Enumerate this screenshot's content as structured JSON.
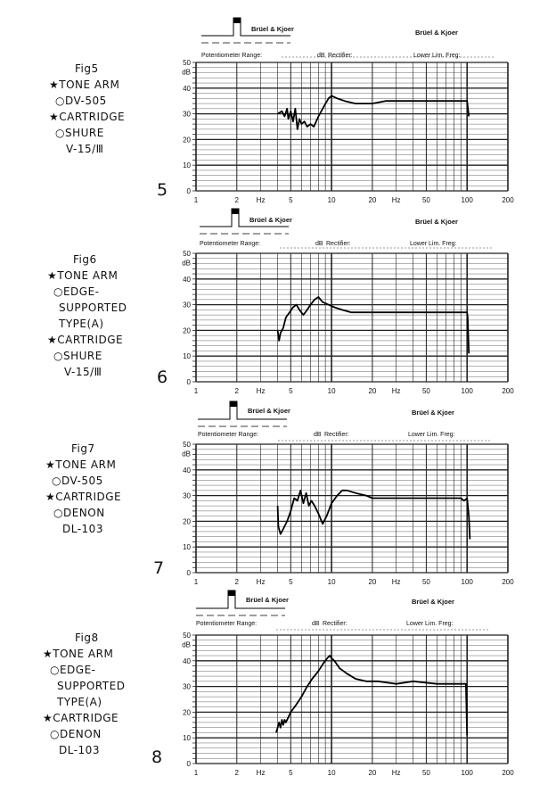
{
  "header": {
    "brand": "Brüel & Kjoer",
    "potentiometer_label": "Potentiometer Range:",
    "db_label": "dB",
    "rectifier_label": "Rectifier:",
    "lower_lim_label": "Lower Lim. Freg:"
  },
  "panels": [
    {
      "fig_label": "Fig5",
      "caption_lines": [
        "★TONE ARM",
        "○DV-505",
        "★CARTRIDGE",
        "○SHURE",
        "V-15/Ⅲ"
      ],
      "big_number": "5"
    },
    {
      "fig_label": "Fig6",
      "caption_lines": [
        "★TONE ARM",
        "○EDGE-",
        "SUPPORTED",
        "TYPE(A)",
        "★CARTRIDGE",
        "○SHURE",
        "V-15/Ⅲ"
      ],
      "big_number": "6"
    },
    {
      "fig_label": "Fig7",
      "caption_lines": [
        "★TONE ARM",
        "○DV-505",
        "★CARTRIDGE",
        "○DENON",
        "DL-103"
      ],
      "big_number": "7"
    },
    {
      "fig_label": "Fig8",
      "caption_lines": [
        "★TONE ARM",
        "○EDGE-",
        "SUPPORTED",
        "TYPE(A)",
        "★CARTRIDGE",
        "○DENON",
        "DL-103"
      ],
      "big_number": "8"
    }
  ],
  "chart_data": [
    {
      "type": "line",
      "xscale": "log",
      "xlim": [
        1,
        200
      ],
      "ylim": [
        0,
        50
      ],
      "ylabel": "dB",
      "xlabel": "Hz",
      "x_ticks": [
        "1",
        "2",
        "Hz",
        "5",
        "10",
        "20",
        "Hz",
        "50",
        "100",
        "200"
      ],
      "y_ticks": [
        "0",
        "10",
        "20",
        "30",
        "40",
        "50"
      ],
      "grid": true,
      "series": [
        {
          "x": [
            4.0,
            4.3,
            4.5,
            4.7,
            4.8,
            5.0,
            5.2,
            5.4,
            5.6,
            5.8,
            6.0,
            6.3,
            6.6,
            7.0,
            7.4,
            8.0,
            8.8,
            9.5,
            10.0,
            11.0,
            12.5,
            15.0,
            20.0,
            25.0,
            30.0,
            50.0,
            80.0,
            100.0,
            103.0
          ],
          "y": [
            30,
            31,
            29,
            32,
            28,
            31,
            27,
            32,
            24,
            28,
            26,
            27,
            25,
            26,
            25,
            29,
            33,
            36,
            37,
            36,
            35,
            34,
            34,
            35,
            35,
            35,
            35,
            35,
            29
          ]
        }
      ]
    },
    {
      "type": "line",
      "xscale": "log",
      "xlim": [
        1,
        200
      ],
      "ylim": [
        0,
        50
      ],
      "ylabel": "dB",
      "xlabel": "Hz",
      "x_ticks": [
        "1",
        "2",
        "Hz",
        "5",
        "10",
        "20",
        "Hz",
        "50",
        "100",
        "200"
      ],
      "y_ticks": [
        "0",
        "10",
        "20",
        "30",
        "40",
        "50"
      ],
      "grid": true,
      "series": [
        {
          "x": [
            4.0,
            4.1,
            4.2,
            4.4,
            4.6,
            4.9,
            5.2,
            5.5,
            5.8,
            6.2,
            6.6,
            7.0,
            7.5,
            8.0,
            8.6,
            9.5,
            10.5,
            12.0,
            14.0,
            17.0,
            20.0,
            30.0,
            50.0,
            80.0,
            100.0,
            101.0,
            103.0
          ],
          "y": [
            20,
            16,
            19,
            21,
            25,
            27,
            29,
            30,
            28,
            26,
            28,
            30,
            32,
            33,
            31,
            30,
            29,
            28,
            27,
            27,
            27,
            27,
            27,
            27,
            27,
            25,
            11
          ]
        }
      ]
    },
    {
      "type": "line",
      "xscale": "log",
      "xlim": [
        1,
        200
      ],
      "ylim": [
        0,
        50
      ],
      "ylabel": "dB",
      "xlabel": "Hz",
      "x_ticks": [
        "1",
        "2",
        "Hz",
        "5",
        "10",
        "20",
        "Hz",
        "50",
        "100",
        "200"
      ],
      "y_ticks": [
        "0",
        "10",
        "20",
        "30",
        "40",
        "50"
      ],
      "grid": true,
      "series": [
        {
          "x": [
            4.0,
            4.05,
            4.2,
            4.4,
            4.7,
            5.0,
            5.3,
            5.6,
            5.9,
            6.2,
            6.5,
            6.8,
            7.1,
            7.5,
            8.0,
            8.6,
            9.2,
            10.0,
            11.0,
            12.0,
            13.0,
            15.0,
            18.0,
            20.0,
            30.0,
            50.0,
            80.0,
            90.0,
            95.0,
            100.0,
            103.0,
            105.0
          ],
          "y": [
            26,
            18,
            15,
            17,
            20,
            24,
            29,
            28,
            32,
            27,
            31,
            26,
            28,
            26,
            23,
            19,
            22,
            27,
            30,
            32,
            32,
            31,
            30,
            29,
            29,
            29,
            29,
            29,
            28,
            29,
            22,
            13
          ]
        }
      ]
    },
    {
      "type": "line",
      "xscale": "log",
      "xlim": [
        1,
        200
      ],
      "ylim": [
        0,
        50
      ],
      "ylabel": "dB",
      "xlabel": "Hz",
      "x_ticks": [
        "1",
        "2",
        "Hz",
        "5",
        "10",
        "20",
        "Hz",
        "50",
        "100",
        "200"
      ],
      "y_ticks": [
        "0",
        "10",
        "20",
        "30",
        "40",
        "50"
      ],
      "grid": true,
      "series": [
        {
          "x": [
            3.9,
            4.0,
            4.1,
            4.2,
            4.3,
            4.4,
            4.5,
            4.6,
            4.8,
            5.0,
            5.5,
            6.0,
            6.6,
            7.2,
            8.0,
            8.7,
            9.3,
            9.7,
            10.0,
            10.5,
            11.5,
            13.0,
            15.0,
            18.0,
            22.0,
            30.0,
            40.0,
            60.0,
            90.0,
            98.0,
            100.0
          ],
          "y": [
            12,
            14,
            16,
            14,
            17,
            15,
            17,
            16,
            18,
            20,
            23,
            26,
            30,
            33,
            36,
            39,
            41,
            42,
            41,
            40,
            37,
            35,
            33,
            32,
            32,
            31,
            32,
            31,
            31,
            31,
            11
          ]
        }
      ]
    }
  ]
}
